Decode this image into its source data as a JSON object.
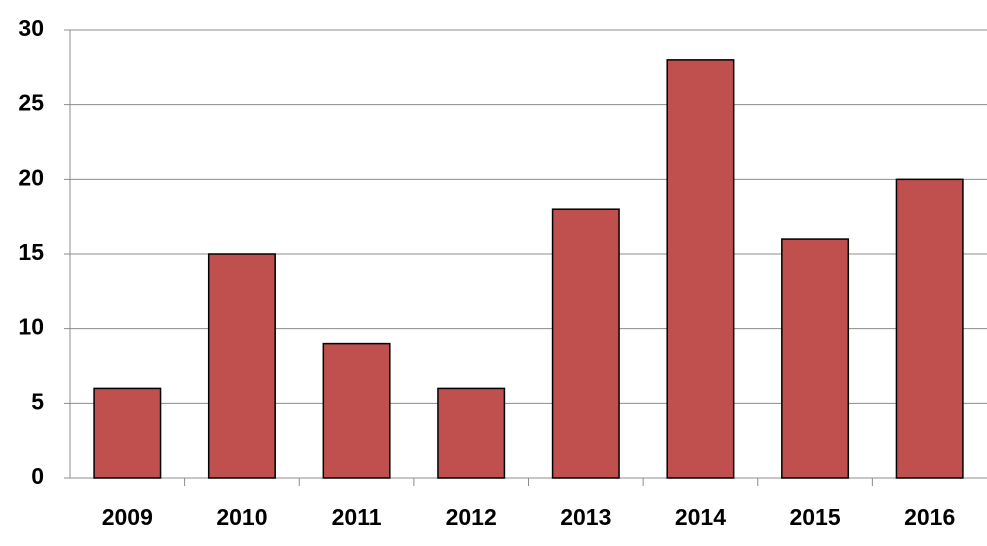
{
  "chart_data": {
    "type": "bar",
    "categories": [
      "2009",
      "2010",
      "2011",
      "2012",
      "2013",
      "2014",
      "2015",
      "2016"
    ],
    "values": [
      6,
      15,
      9,
      6,
      18,
      28,
      16,
      20
    ],
    "color": "#c0504d",
    "ylim": [
      0,
      30
    ],
    "yticks": [
      0,
      5,
      10,
      15,
      20,
      25,
      30
    ],
    "grid": true
  }
}
